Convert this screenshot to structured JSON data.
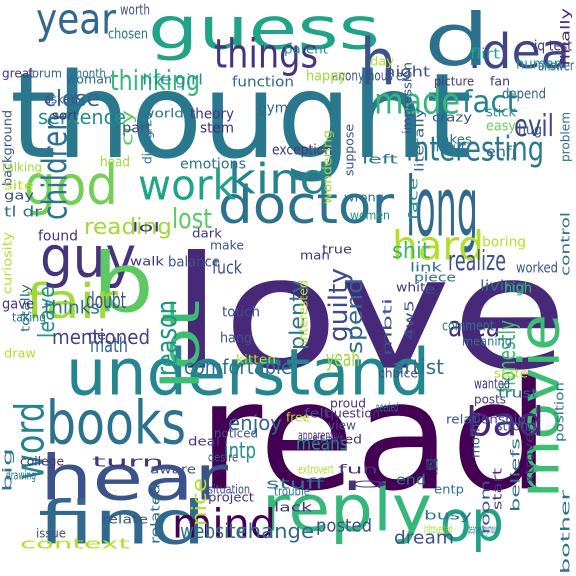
{
  "words": [
    {
      "text": "thought",
      "color": "#2a788e"
    },
    {
      "text": "love",
      "color": "#482878"
    },
    {
      "text": "read",
      "color": "#440154"
    },
    {
      "text": "guess",
      "color": "#20a386"
    },
    {
      "text": "understand",
      "color": "#24868e"
    },
    {
      "text": "hear",
      "color": "#3b528b"
    },
    {
      "text": "find",
      "color": "#31688e"
    },
    {
      "text": "reply",
      "color": "#35b779"
    },
    {
      "text": "doctor",
      "color": "#2c728e"
    },
    {
      "text": "guy",
      "color": "#46337e"
    },
    {
      "text": "long",
      "color": "#31688e"
    },
    {
      "text": "god",
      "color": "#73d056"
    },
    {
      "text": "books",
      "color": "#2c728e"
    },
    {
      "text": "movie",
      "color": "#3dbc74"
    },
    {
      "text": "b",
      "color": "#5ec962"
    },
    {
      "text": "kind",
      "color": "#26828e"
    },
    {
      "text": "work",
      "color": "#20a386"
    },
    {
      "text": "lot",
      "color": "#3dbc74"
    },
    {
      "text": "fair",
      "color": "#9fda3a"
    },
    {
      "text": "hard",
      "color": "#b5de2b"
    },
    {
      "text": "idea",
      "color": "#414487"
    },
    {
      "text": "year",
      "color": "#31688e"
    },
    {
      "text": "things",
      "color": "#46337e"
    },
    {
      "text": "h",
      "color": "#3b528b"
    },
    {
      "text": "d",
      "color": "#2d708e"
    },
    {
      "text": "made",
      "color": "#35b779"
    },
    {
      "text": "op",
      "color": "#20a386"
    },
    {
      "text": "mind",
      "color": "#440154"
    },
    {
      "text": "bad",
      "color": "#482475"
    },
    {
      "text": "interesting",
      "color": "#2a788e"
    },
    {
      "text": "word",
      "color": "#26828e"
    },
    {
      "text": "reason",
      "color": "#1f968b"
    },
    {
      "text": "thinking",
      "color": "#35b779"
    },
    {
      "text": "fact",
      "color": "#26828e"
    },
    {
      "text": "close",
      "color": "#31688e"
    },
    {
      "text": "sentence",
      "color": "#21918c"
    },
    {
      "text": "children",
      "color": "#2c728e"
    },
    {
      "text": "leave",
      "color": "#1f968b"
    },
    {
      "text": "guilty",
      "color": "#3e4a89"
    },
    {
      "text": "evil",
      "color": "#3f4788"
    },
    {
      "text": "reading",
      "color": "#a0da39"
    },
    {
      "text": "lost",
      "color": "#5ec962"
    },
    {
      "text": "shit",
      "color": "#35b779"
    },
    {
      "text": "realize",
      "color": "#3b528b"
    },
    {
      "text": "plenty",
      "color": "#2c728e"
    },
    {
      "text": "spend",
      "color": "#31688e"
    },
    {
      "text": "area",
      "color": "#482878"
    },
    {
      "text": "honestly",
      "color": "#3dbc74"
    },
    {
      "text": "math",
      "color": "#31688e"
    },
    {
      "text": "doubt",
      "color": "#3b528b"
    },
    {
      "text": "thinks",
      "color": "#2c728e"
    },
    {
      "text": "mentioned",
      "color": "#414487"
    },
    {
      "text": "comfortable",
      "color": "#2c728e"
    },
    {
      "text": "artist",
      "color": "#2c728e"
    },
    {
      "text": "yeah",
      "color": "#9fda3a"
    },
    {
      "text": "enjoy",
      "color": "#31688e"
    },
    {
      "text": "means",
      "color": "#1f968b"
    },
    {
      "text": "intp",
      "color": "#21918c"
    },
    {
      "text": "nice",
      "color": "#b5de2b"
    },
    {
      "text": "change",
      "color": "#31688e"
    },
    {
      "text": "posted",
      "color": "#3b528b"
    },
    {
      "text": "website",
      "color": "#2c728e"
    },
    {
      "text": "dream",
      "color": "#3b528b"
    },
    {
      "text": "human",
      "color": "#1f968b"
    },
    {
      "text": "night",
      "color": "#3b528b"
    },
    {
      "text": "anonymous es",
      "color": "#3b528b"
    },
    {
      "text": "fuck",
      "color": "#3b528b"
    },
    {
      "text": "cry",
      "color": "#5ec962"
    },
    {
      "text": "exception",
      "color": "#46337e"
    },
    {
      "text": "stem",
      "color": "#482878"
    },
    {
      "text": "theory",
      "color": "#46337e"
    },
    {
      "text": "function",
      "color": "#31688e"
    },
    {
      "text": "happy",
      "color": "#9fda3a"
    },
    {
      "text": "life",
      "color": "#1f968b"
    },
    {
      "text": "girl",
      "color": "#21918c"
    },
    {
      "text": "flirt",
      "color": "#20a386"
    },
    {
      "text": "iq test",
      "color": "#46337e"
    },
    {
      "text": "finally",
      "color": "#482878"
    },
    {
      "text": "worth",
      "color": "#3b528b"
    },
    {
      "text": "chosen",
      "color": "#2c728e"
    },
    {
      "text": "forum",
      "color": "#31688e"
    },
    {
      "text": "month",
      "color": "#2c728e"
    },
    {
      "text": "great",
      "color": "#46337e"
    },
    {
      "text": "woman",
      "color": "#31688e"
    },
    {
      "text": "parent",
      "color": "#21918c"
    },
    {
      "text": "impression",
      "color": "#3b528b"
    },
    {
      "text": "answer",
      "color": "#31688e"
    },
    {
      "text": "fan",
      "color": "#46337e"
    },
    {
      "text": "depend",
      "color": "#31688e"
    },
    {
      "text": "day",
      "color": "#b5de2b"
    },
    {
      "text": "picture",
      "color": "#46337e"
    },
    {
      "text": "crazy",
      "color": "#3b528b"
    },
    {
      "text": "suppose",
      "color": "#3b528b"
    },
    {
      "text": "literally",
      "color": "#31688e"
    },
    {
      "text": "stick",
      "color": "#21918c"
    },
    {
      "text": "easy",
      "color": "#73d056"
    },
    {
      "text": "takes",
      "color": "#2c728e"
    },
    {
      "text": "input",
      "color": "#2c728e"
    },
    {
      "text": "hug",
      "color": "#3b528b"
    },
    {
      "text": "enfj",
      "color": "#31688e"
    },
    {
      "text": "problem",
      "color": "#2c728e"
    },
    {
      "text": "gym",
      "color": "#31688e"
    },
    {
      "text": "asked",
      "color": "#3b528b"
    },
    {
      "text": "sort",
      "color": "#46337e"
    },
    {
      "text": "world",
      "color": "#2c728e"
    },
    {
      "text": "disagree",
      "color": "#2c728e"
    },
    {
      "text": "background",
      "color": "#3b528b"
    },
    {
      "text": "part",
      "color": "#3b528b"
    },
    {
      "text": "emotions",
      "color": "#2c728e"
    },
    {
      "text": "wondering",
      "color": "#9fda3a"
    },
    {
      "text": "head",
      "color": "#9fda3a"
    },
    {
      "text": "talking",
      "color": "#9fda3a"
    },
    {
      "text": "site",
      "color": "#b5de2b"
    },
    {
      "text": "gay",
      "color": "#3b528b"
    },
    {
      "text": "dark",
      "color": "#46337e"
    },
    {
      "text": "left",
      "color": "#2c728e"
    },
    {
      "text": "wrong",
      "color": "#2c728e"
    },
    {
      "text": "women",
      "color": "#21918c"
    },
    {
      "text": "face",
      "color": "#21918c"
    },
    {
      "text": "man",
      "color": "#46337e"
    },
    {
      "text": "tl dr",
      "color": "#2c728e"
    },
    {
      "text": "found",
      "color": "#46337e"
    },
    {
      "text": "lol",
      "color": "#46337e"
    },
    {
      "text": "balance",
      "color": "#3b528b"
    },
    {
      "text": "make",
      "color": "#3b528b"
    },
    {
      "text": "true",
      "color": "#46337e"
    },
    {
      "text": "link",
      "color": "#2c728e"
    },
    {
      "text": "piece",
      "color": "#2c728e"
    },
    {
      "text": "boring",
      "color": "#b5de2b"
    },
    {
      "text": "worked",
      "color": "#3b528b"
    },
    {
      "text": "control",
      "color": "#2c728e"
    },
    {
      "text": "curiosity",
      "color": "#b5de2b"
    },
    {
      "text": "totally",
      "color": "#2c728e"
    },
    {
      "text": "gave",
      "color": "#46337e"
    },
    {
      "text": "taking",
      "color": "#2c728e"
    },
    {
      "text": "walk",
      "color": "#46337e"
    },
    {
      "text": "white",
      "color": "#46337e"
    },
    {
      "text": "e",
      "color": "#3b528b"
    },
    {
      "text": "living",
      "color": "#2c728e"
    },
    {
      "text": "high",
      "color": "#3dbc74"
    },
    {
      "text": "mbti",
      "color": "#3b528b"
    },
    {
      "text": "4w5",
      "color": "#3b528b"
    },
    {
      "text": "ne",
      "color": "#46337e"
    },
    {
      "text": "touch",
      "color": "#3b528b"
    },
    {
      "text": "interested",
      "color": "#b5de2b"
    },
    {
      "text": "hang",
      "color": "#3b528b"
    },
    {
      "text": "kitten",
      "color": "#b5de2b"
    },
    {
      "text": "comment",
      "color": "#2c728e"
    },
    {
      "text": "meaning",
      "color": "#2c728e"
    },
    {
      "text": "draw",
      "color": "#b5de2b"
    },
    {
      "text": "choice",
      "color": "#3b528b"
    },
    {
      "text": "state",
      "color": "#b5de2b"
    },
    {
      "text": "wanted",
      "color": "#46337e"
    },
    {
      "text": "posts",
      "color": "#46337e"
    },
    {
      "text": "trust",
      "color": "#2c728e"
    },
    {
      "text": "position",
      "color": "#2c728e"
    },
    {
      "text": "xtrovert",
      "color": "#46337e"
    },
    {
      "text": "felt",
      "color": "#3b528b"
    },
    {
      "text": "question",
      "color": "#46337e"
    },
    {
      "text": "proud",
      "color": "#46337e"
    },
    {
      "text": "relationship",
      "color": "#3b528b"
    },
    {
      "text": "mother",
      "color": "#3b528b"
    },
    {
      "text": "strong",
      "color": "#3b528b"
    },
    {
      "text": "deal",
      "color": "#46337e"
    },
    {
      "text": "noticed",
      "color": "#3b528b"
    },
    {
      "text": "free",
      "color": "#b5de2b"
    },
    {
      "text": "view",
      "color": "#3b528b"
    },
    {
      "text": "needed",
      "color": "#2c728e"
    },
    {
      "text": "apparently",
      "color": "#46337e"
    },
    {
      "text": "started",
      "color": "#46337e"
    },
    {
      "text": "turn",
      "color": "#46337e"
    },
    {
      "text": "aware",
      "color": "#3b528b"
    },
    {
      "text": "desire",
      "color": "#3b528b"
    },
    {
      "text": "extrovert",
      "color": "#b5de2b"
    },
    {
      "text": "fun",
      "color": "#46337e"
    },
    {
      "text": "beliefs",
      "color": "#2c728e"
    },
    {
      "text": "big",
      "color": "#2c728e"
    },
    {
      "text": "college",
      "color": "#46337e"
    },
    {
      "text": "drawing",
      "color": "#2c728e"
    },
    {
      "text": "relate",
      "color": "#3b528b"
    },
    {
      "text": "related",
      "color": "#2c728e"
    },
    {
      "text": "situation",
      "color": "#3b528b"
    },
    {
      "text": "project",
      "color": "#46337e"
    },
    {
      "text": "stuff",
      "color": "#2c728e"
    },
    {
      "text": "p",
      "color": "#46337e"
    },
    {
      "text": "end",
      "color": "#2c728e"
    },
    {
      "text": "making",
      "color": "#2c728e"
    },
    {
      "text": "entp",
      "color": "#2c728e"
    },
    {
      "text": "room",
      "color": "#3b528b"
    },
    {
      "text": "start",
      "color": "#46337e"
    },
    {
      "text": "issue",
      "color": "#3b528b"
    },
    {
      "text": "trouble",
      "color": "#2c728e"
    },
    {
      "text": "lack",
      "color": "#46337e"
    },
    {
      "text": "busy",
      "color": "#2c728e"
    },
    {
      "text": "introverted",
      "color": "#9fda3a"
    },
    {
      "text": "dear anonymous",
      "color": "#2c728e"
    },
    {
      "text": "bother",
      "color": "#2c728e"
    },
    {
      "text": "context",
      "color": "#b5de2b"
    }
  ]
}
